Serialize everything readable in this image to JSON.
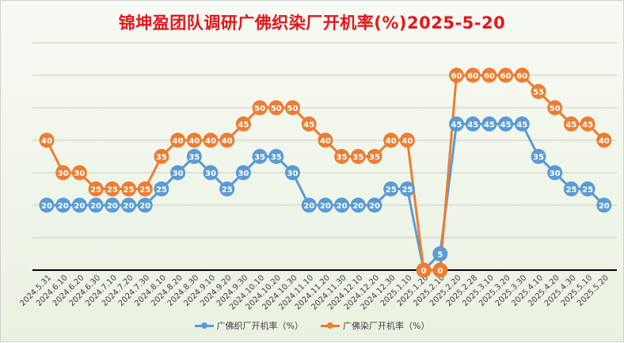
{
  "chart_data": {
    "type": "line",
    "title": "锦坤盈团队调研广佛织染厂开机率(%)2025-5-20",
    "xlabel": "",
    "ylabel": "",
    "ylim": [
      0,
      70
    ],
    "grid": true,
    "legend_position": "bottom",
    "categories": [
      "2024.5.31",
      "2024.6.10",
      "2024.6.20",
      "2024.6.30",
      "2024.7.10",
      "2024.7.20",
      "2024.7.30",
      "2024.8.10",
      "2024.8.20",
      "2024.8.30",
      "2024.9.10",
      "2024.9.20",
      "2024.9.30",
      "2024.10.10",
      "2024.10.20",
      "2024.10.30",
      "2024.11.10",
      "2024.11.20",
      "2024.11.30",
      "2024.12.10",
      "2024.12.20",
      "2024.12.30",
      "2025.1.10",
      "2025.1.20",
      "2025.2.10",
      "2025.2.20",
      "2025.2.28",
      "2025.3.10",
      "2025.3.20",
      "2025.3.30",
      "2025.4.10",
      "2025.4.20",
      "2025.4.30",
      "2025.5.10",
      "2025.5.20"
    ],
    "series": [
      {
        "name": "广佛织厂开机率（%）",
        "color": "#5b9bd5",
        "values": [
          20,
          20,
          20,
          20,
          20,
          20,
          20,
          25,
          30,
          35,
          30,
          25,
          30,
          35,
          35,
          30,
          20,
          20,
          20,
          20,
          20,
          25,
          25,
          0,
          5,
          45,
          45,
          45,
          45,
          45,
          35,
          30,
          25,
          25,
          20
        ]
      },
      {
        "name": "广佛染厂开机率（%）",
        "color": "#ed7d31",
        "values": [
          40,
          30,
          30,
          25,
          25,
          25,
          25,
          35,
          40,
          40,
          40,
          40,
          45,
          50,
          50,
          50,
          45,
          40,
          35,
          35,
          35,
          40,
          40,
          0,
          0,
          60,
          60,
          60,
          60,
          60,
          55,
          50,
          45,
          45,
          40
        ]
      }
    ]
  }
}
